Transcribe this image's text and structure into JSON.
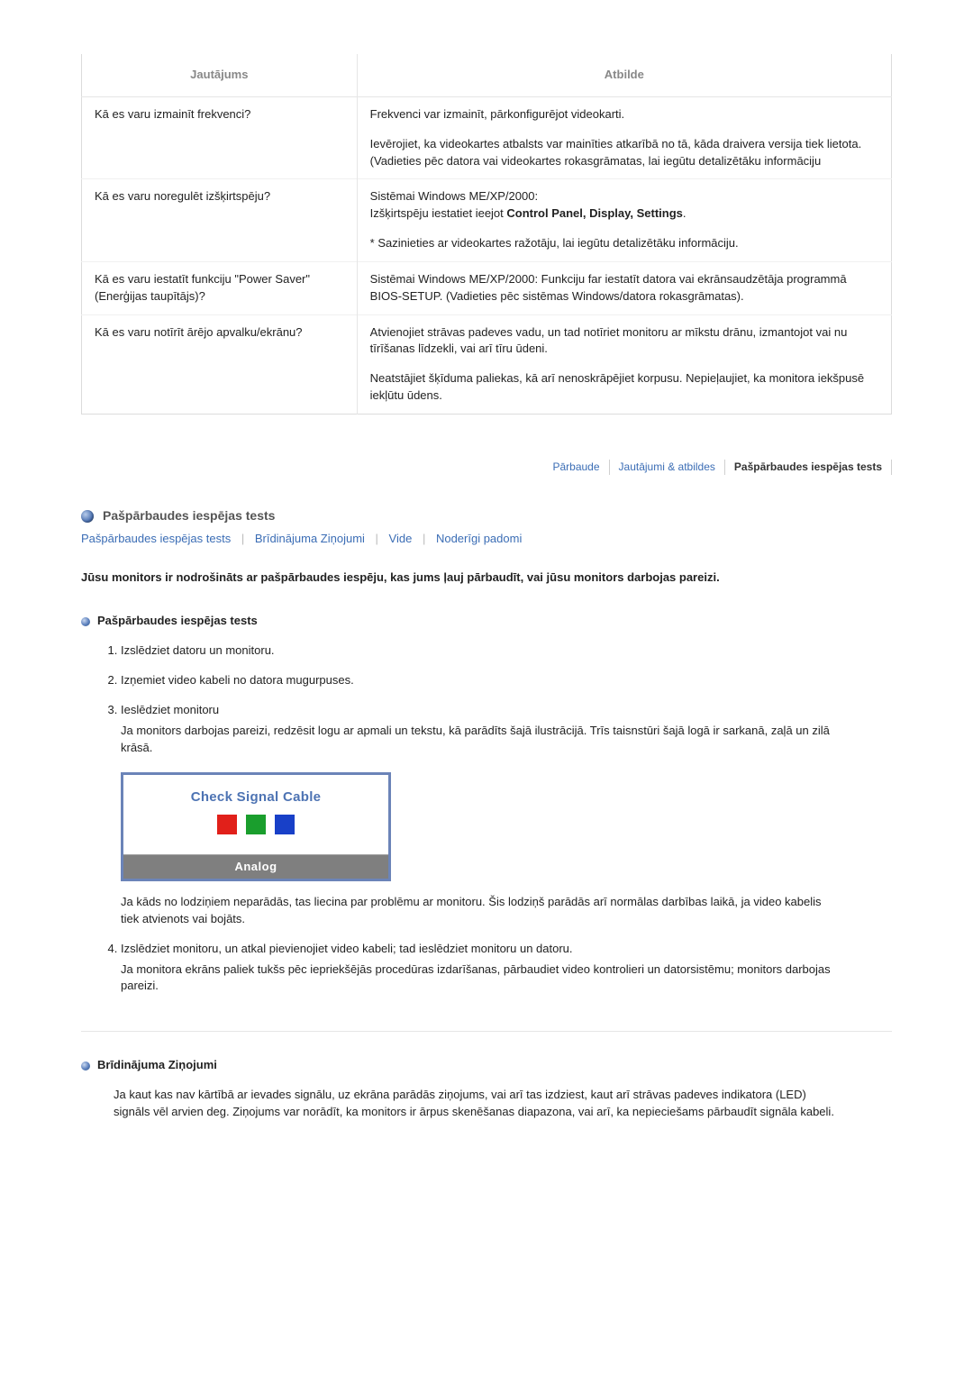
{
  "table": {
    "headers": [
      "Jautājums",
      "Atbilde"
    ],
    "rows": [
      {
        "q": "Kā es varu izmainīt frekvenci?",
        "a": [
          "Frekvenci var izmainīt, pārkonfigurējot videokarti.",
          "Ievērojiet, ka videokartes atbalsts var mainīties atkarībā no tā, kāda draivera versija tiek lietota. (Vadieties pēc datora vai videokartes rokasgrāmatas, lai iegūtu detalizētāku informāciju"
        ]
      },
      {
        "q": "Kā es varu noregulēt izšķirtspēju?",
        "a_prefix": "Sistēmai Windows ME/XP/2000:\nIzšķirtspēju iestatiet ieejot ",
        "a_bold": "Control Panel, Display, Settings",
        "a_suffix": ".",
        "a2": "* Sazinieties ar videokartes ražotāju, lai iegūtu detalizētāku informāciju."
      },
      {
        "q": "Kā es varu iestatīt funkciju \"Power Saver\" (Enerģijas taupītājs)?",
        "a": [
          "Sistēmai Windows ME/XP/2000: Funkciju far iestatīt datora vai ekrānsaudzētāja programmā BIOS-SETUP. (Vadieties pēc sistēmas Windows/datora rokasgrāmatas)."
        ]
      },
      {
        "q": "Kā es varu notīrīt ārējo apvalku/ekrānu?",
        "a": [
          "Atvienojiet strāvas padeves vadu, un tad notīriet monitoru ar mīkstu drānu, izmantojot vai nu tīrīšanas līdzekli, vai arī tīru ūdeni.",
          "Neatstājiet šķīduma paliekas, kā arī nenoskrāpējiet korpusu. Nepieļaujiet, ka monitora iekšpusē iekļūtu ūdens."
        ]
      }
    ]
  },
  "tabs": {
    "items": [
      "Pārbaude",
      "Jautājumi & atbildes",
      "Pašpārbaudes iespējas tests"
    ],
    "active_index": 2,
    "link_color": "#3b6db5",
    "active_color": "#333333"
  },
  "section": {
    "title": "Pašpārbaudes iespējas tests",
    "crumbs": [
      "Pašpārbaudes iespējas tests",
      "Brīdinājuma Ziņojumi",
      "Vide",
      "Noderīgi padomi"
    ],
    "intro": "Jūsu monitors ir nodrošināts ar pašpārbaudes iespēju, kas jums ļauj pārbaudīt, vai jūsu monitors darbojas pareizi.",
    "sub1": "Pašpārbaudes iespējas tests",
    "steps": [
      {
        "text": "Izslēdziet datoru un monitoru."
      },
      {
        "text": "Izņemiet video kabeli no datora mugurpuses."
      },
      {
        "text": "Ieslēdziet monitoru",
        "extra": "Ja monitors darbojas pareizi, redzēsit logu ar apmali un tekstu, kā parādīts šajā ilustrācijā. Trīs taisnstūri šajā logā ir sarkanā, zaļā un zilā krāsā.",
        "after": "Ja kāds no lodziņiem neparādās, tas liecina par problēmu ar monitoru. Šis lodziņš parādās arī normālas darbības laikā, ja video kabelis tiek atvienots vai bojāts."
      },
      {
        "text": "Izslēdziet monitoru, un atkal pievienojiet video kabeli; tad ieslēdziet monitoru un datoru.",
        "extra": "Ja monitora ekrāns paliek tukšs pēc iepriekšējās procedūras izdarīšanas, pārbaudiet video kontrolieri un datorsistēmu; monitors darbojas pareizi."
      }
    ],
    "signal_box": {
      "title": "Check Signal Cable",
      "squares": [
        "#e1201a",
        "#1a9e2d",
        "#1840c8"
      ],
      "sub_label": "Analog",
      "border_color": "#6b84b8",
      "sub_bg": "#7f7f7f",
      "title_color": "#4d73b3"
    },
    "sub2": "Brīdinājuma Ziņojumi",
    "warn_para": "Ja kaut kas nav kārtībā ar ievades signālu, uz ekrāna parādās ziņojums, vai arī tas izdziest, kaut arī strāvas padeves indikatora (LED) signāls vēl arvien deg. Ziņojums var norādīt, ka monitors ir ārpus skenēšanas diapazona, vai arī, ka nepieciešams pārbaudīt signāla kabeli."
  },
  "colors": {
    "link": "#3b6db5",
    "text": "#222222",
    "header_text": "#888888",
    "border": "#dcdcdc"
  }
}
